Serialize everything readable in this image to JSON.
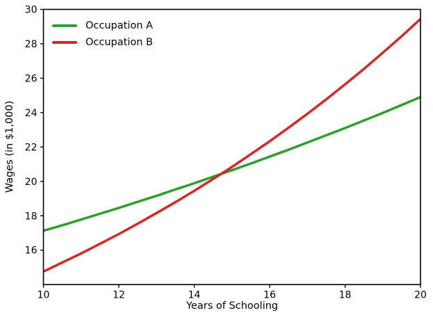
{
  "figure": {
    "background": "#ffffff",
    "axis_color": "#000000"
  },
  "chart_data": {
    "type": "line",
    "title": "",
    "xlabel": "Years of Schooling",
    "ylabel": "Wages (in $1,000)",
    "xlim": [
      10,
      20
    ],
    "ylim": [
      14,
      30
    ],
    "xticks": [
      10,
      12,
      14,
      16,
      18,
      20
    ],
    "yticks": [
      16,
      18,
      20,
      22,
      24,
      26,
      28,
      30
    ],
    "grid": false,
    "legend": {
      "position": "upper-left",
      "frame": false
    },
    "x": [
      10,
      10.5,
      11,
      11.5,
      12,
      12.5,
      13,
      13.5,
      14,
      14.5,
      15,
      15.5,
      16,
      16.5,
      17,
      17.5,
      18,
      18.5,
      19,
      19.5,
      20
    ],
    "series": [
      {
        "name": "Occupation A",
        "color": "#2ca02c",
        "values": [
          17.13,
          17.45,
          17.78,
          18.12,
          18.46,
          18.81,
          19.16,
          19.53,
          19.89,
          20.27,
          20.65,
          21.04,
          21.44,
          21.84,
          22.26,
          22.68,
          23.1,
          23.54,
          23.98,
          24.44,
          24.9
        ]
      },
      {
        "name": "Occupation B",
        "color": "#d62728",
        "values": [
          14.76,
          15.28,
          15.81,
          16.37,
          16.94,
          17.54,
          18.16,
          18.79,
          19.45,
          20.14,
          20.84,
          21.58,
          22.33,
          23.12,
          23.93,
          24.77,
          25.64,
          26.54,
          27.48,
          28.44,
          29.44
        ]
      }
    ]
  }
}
